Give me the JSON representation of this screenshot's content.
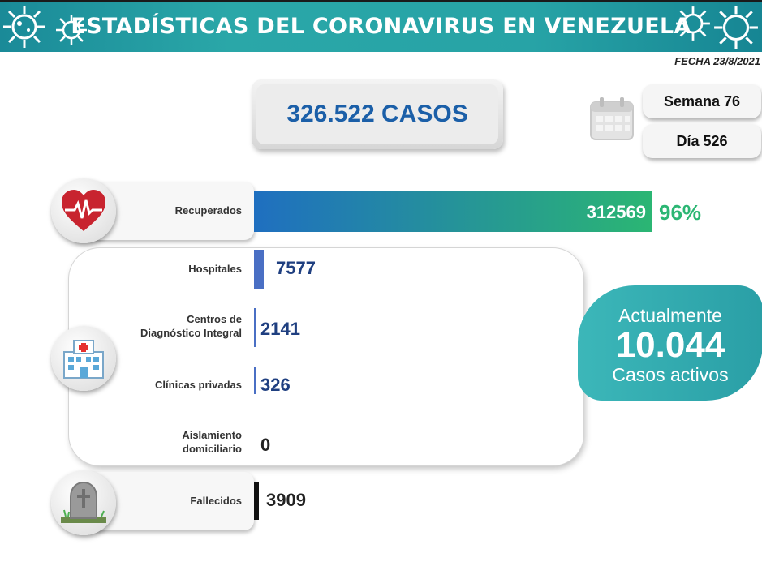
{
  "header": {
    "title": "ESTADÍSTICAS DEL CORONAVIRUS EN VENEZUELA"
  },
  "date_label": "FECHA 23/8/2021",
  "total": {
    "text": "326.522 CASOS"
  },
  "week": {
    "label": "Semana 76"
  },
  "day": {
    "label": "Día 526"
  },
  "active": {
    "line1": "Actualmente",
    "number": "10.044",
    "line2": "Casos activos"
  },
  "colors": {
    "header": "#27a3a6",
    "recovered_start": "#1f6fc0",
    "recovered_end": "#2bb673",
    "percent": "#2bb673",
    "value_text": "#1f3f80",
    "hosp_bar": "#4a6fc4",
    "deaths_bar": "#111111"
  },
  "chart_data": {
    "type": "bar",
    "orientation": "horizontal",
    "categories": [
      "Recuperados",
      "Hospitales",
      "Centros de Diagnóstico Integral",
      "Clínicas privadas",
      "Aislamiento domiciliario",
      "Fallecidos"
    ],
    "values": [
      312569,
      7577,
      2141,
      326,
      0,
      3909
    ],
    "value_labels": [
      "312569",
      "7577",
      "2141",
      "326",
      "0",
      "3909"
    ],
    "recovered_percent": "96%",
    "icons": [
      "heart-icon",
      "hospital-icon",
      "gravestone-icon"
    ]
  },
  "rows": {
    "recovered": {
      "label": "Recuperados"
    },
    "hospitals": {
      "label": "Hospitales"
    },
    "cdi": {
      "line1": "Centros de",
      "line2": "Diagnóstico Integral"
    },
    "private": {
      "label": "Clínicas privadas"
    },
    "home": {
      "line1": "Aislamiento",
      "line2": "domiciliario"
    },
    "deaths": {
      "label": "Fallecidos"
    }
  }
}
